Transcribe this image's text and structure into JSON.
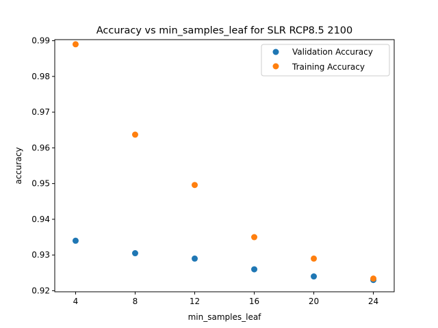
{
  "chart_data": {
    "type": "scatter",
    "title": "Accuracy vs min_samples_leaf for SLR RCP8.5 2100",
    "xlabel": "min_samples_leaf",
    "ylabel": "accuracy",
    "xlim": [
      2.6,
      25.4
    ],
    "ylim": [
      0.9197,
      0.9903
    ],
    "xticks": [
      4,
      8,
      12,
      16,
      20,
      24
    ],
    "yticks": [
      0.92,
      0.93,
      0.94,
      0.95,
      0.96,
      0.97,
      0.98,
      0.99
    ],
    "ytick_labels": [
      "0.92",
      "0.93",
      "0.94",
      "0.95",
      "0.96",
      "0.97",
      "0.98",
      "0.99"
    ],
    "grid": false,
    "legend_position": "top-right",
    "x": [
      4,
      8,
      12,
      16,
      20,
      24
    ],
    "series": [
      {
        "name": "Validation Accuracy",
        "color": "#1f77b4",
        "values": [
          0.934,
          0.9305,
          0.929,
          0.926,
          0.924,
          0.923
        ]
      },
      {
        "name": "Training Accuracy",
        "color": "#ff7f0e",
        "values": [
          0.989,
          0.9637,
          0.9496,
          0.935,
          0.929,
          0.9234
        ]
      }
    ]
  }
}
